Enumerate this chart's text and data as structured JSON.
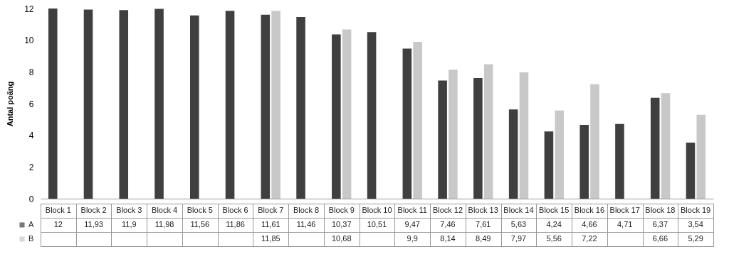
{
  "chart_data": {
    "type": "bar",
    "ylabel": "Antal poäng",
    "categories": [
      "Block 1",
      "Block 2",
      "Block 3",
      "Block 4",
      "Block 5",
      "Block 6",
      "Block 7",
      "Block 8",
      "Block 9",
      "Block 10",
      "Block 11",
      "Block 12",
      "Block 13",
      "Block 14",
      "Block 15",
      "Block 16",
      "Block 17",
      "Block 18",
      "Block 19"
    ],
    "series": [
      {
        "name": "A",
        "color": "#3f3f3f",
        "values": [
          12,
          11.93,
          11.9,
          11.98,
          11.56,
          11.86,
          11.61,
          11.46,
          10.37,
          10.51,
          9.47,
          7.46,
          7.61,
          5.63,
          4.24,
          4.66,
          4.71,
          6.37,
          3.54
        ],
        "value_labels": [
          "12",
          "11,93",
          "11,9",
          "11,98",
          "11,56",
          "11,86",
          "11,61",
          "11,46",
          "10,37",
          "10,51",
          "9,47",
          "7,46",
          "7,61",
          "5,63",
          "4,24",
          "4,66",
          "4,71",
          "6,37",
          "3,54"
        ]
      },
      {
        "name": "B",
        "color": "#c8c8c8",
        "values": [
          null,
          null,
          null,
          null,
          null,
          null,
          11.85,
          null,
          10.68,
          null,
          9.9,
          8.14,
          8.49,
          7.97,
          5.56,
          7.22,
          null,
          6.66,
          5.29
        ],
        "value_labels": [
          null,
          null,
          null,
          null,
          null,
          null,
          "11,85",
          null,
          "10,68",
          null,
          "9,9",
          "8,14",
          "8,49",
          "7,97",
          "5,56",
          "7,22",
          null,
          "6,66",
          "5,29"
        ]
      }
    ],
    "ylim": [
      0,
      12
    ],
    "yticks": [
      0,
      2,
      4,
      6,
      8,
      10,
      12
    ],
    "grid": false,
    "legend": "bottom"
  }
}
